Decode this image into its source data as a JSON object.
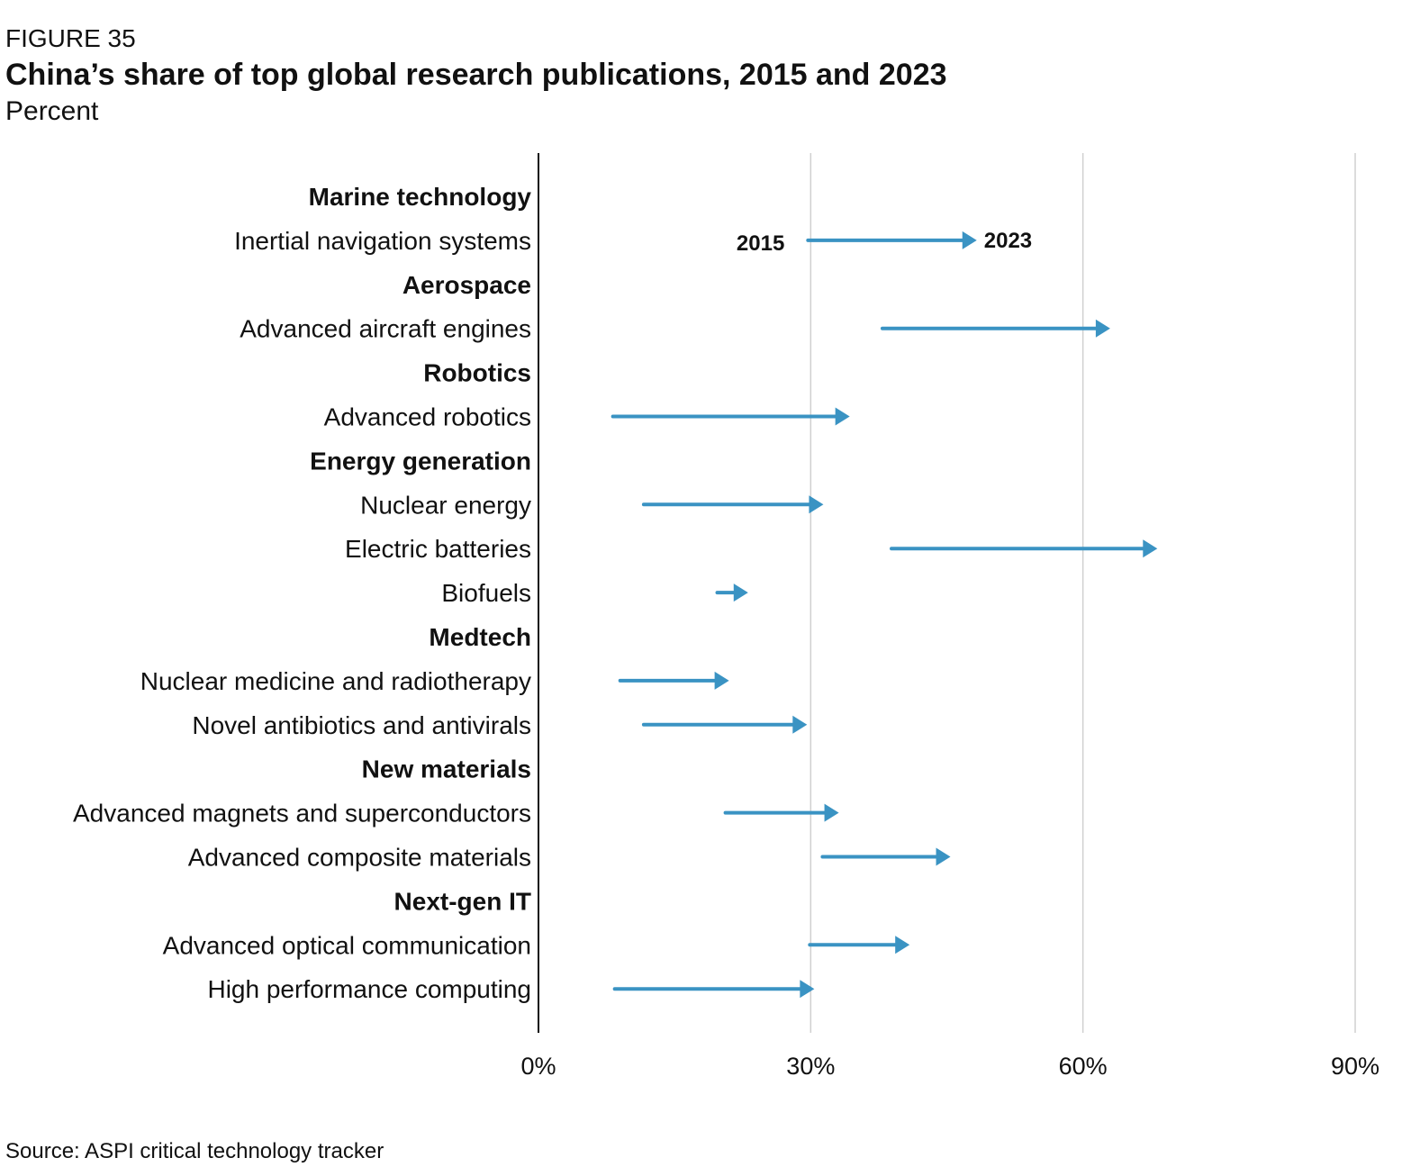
{
  "figure_label": "FIGURE 35",
  "title": "China’s share of top global research publications, 2015 and 2023",
  "subtitle": "Percent",
  "source": "Source: ASPI critical technology tracker",
  "colors": {
    "arrow": "#3a93c3",
    "axis": "#111111",
    "grid": "#d0d0d0",
    "text": "#111111"
  },
  "chart_data": {
    "type": "arrow",
    "title": "China’s share of top global research publications, 2015 and 2023",
    "xlabel": "",
    "ylabel": "",
    "xlim": [
      0,
      90
    ],
    "xticks": [
      0,
      30,
      60,
      90
    ],
    "xtick_labels": [
      "0%",
      "30%",
      "60%",
      "90%"
    ],
    "grid": true,
    "series": [
      {
        "name": "2015",
        "role": "start"
      },
      {
        "name": "2023",
        "role": "end"
      }
    ],
    "annotations": {
      "start_label": "2015",
      "end_label": "2023",
      "row": 1
    },
    "rows": [
      {
        "label": "Marine technology",
        "header": true
      },
      {
        "label": "Inertial navigation systems",
        "header": false,
        "start": 29.7,
        "end": 48.3
      },
      {
        "label": "Aerospace",
        "header": true
      },
      {
        "label": "Advanced aircraft engines",
        "header": false,
        "start": 37.9,
        "end": 63.0
      },
      {
        "label": "Robotics",
        "header": true
      },
      {
        "label": "Advanced robotics",
        "header": false,
        "start": 8.2,
        "end": 34.3
      },
      {
        "label": "Energy generation",
        "header": true
      },
      {
        "label": "Nuclear energy",
        "header": false,
        "start": 11.6,
        "end": 31.4
      },
      {
        "label": "Electric batteries",
        "header": false,
        "start": 38.9,
        "end": 68.2
      },
      {
        "label": "Biofuels",
        "header": false,
        "start": 19.7,
        "end": 23.1
      },
      {
        "label": "Medtech",
        "header": true
      },
      {
        "label": "Nuclear medicine and radiotherapy",
        "header": false,
        "start": 9.0,
        "end": 21.0
      },
      {
        "label": "Novel antibiotics and antivirals",
        "header": false,
        "start": 11.6,
        "end": 29.6
      },
      {
        "label": "New materials",
        "header": true
      },
      {
        "label": "Advanced magnets and superconductors",
        "header": false,
        "start": 20.6,
        "end": 33.1
      },
      {
        "label": "Advanced composite materials",
        "header": false,
        "start": 31.3,
        "end": 45.4
      },
      {
        "label": "Next-gen IT",
        "header": true
      },
      {
        "label": "Advanced optical communication",
        "header": false,
        "start": 29.9,
        "end": 40.9
      },
      {
        "label": "High performance computing",
        "header": false,
        "start": 8.4,
        "end": 30.4
      }
    ]
  }
}
